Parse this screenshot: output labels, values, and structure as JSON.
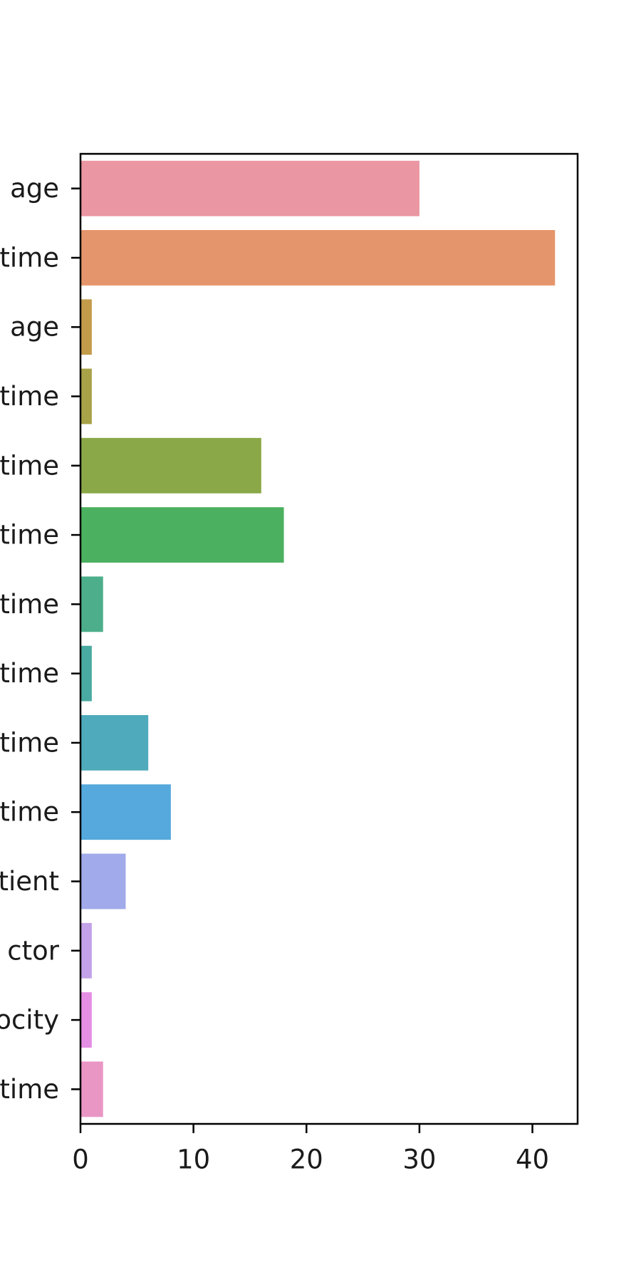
{
  "chart_data": {
    "type": "bar",
    "orientation": "horizontal",
    "categories": [
      "age",
      "time",
      "age",
      "time",
      "time",
      "time",
      "time",
      "time",
      "time",
      "time",
      "tient",
      "ctor",
      "ocity",
      "time"
    ],
    "values": [
      30,
      42,
      1,
      1,
      16,
      18,
      2,
      1,
      6,
      8,
      4,
      1,
      1,
      2
    ],
    "colors": [
      "#ea96a3",
      "#e5956b",
      "#c39c4b",
      "#a8a248",
      "#8ba848",
      "#4bb060",
      "#4cae8b",
      "#49aaa1",
      "#4fabbc",
      "#55a9dc",
      "#a1aaea",
      "#c3a2e9",
      "#e58fe4",
      "#e996c5"
    ],
    "xlim": [
      0,
      44
    ],
    "xticks": [
      0,
      10,
      20,
      30,
      40
    ],
    "title": "",
    "xlabel": "",
    "ylabel": "",
    "grid": false,
    "legend": "none"
  }
}
